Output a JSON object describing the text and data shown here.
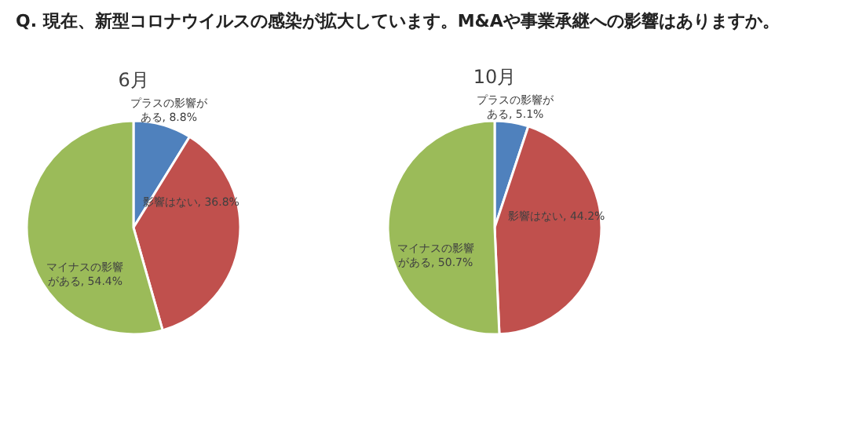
{
  "chart_data": [
    {
      "type": "pie",
      "title": "6月",
      "annotations": [
        "Q.  現在、新型コロナウイルスの感染が拡大しています。M&Aや事業承継への影響はありますか。"
      ],
      "categories": [
        "プラスの影響がある",
        "影響はない",
        "マイナスの影響がある"
      ],
      "values": [
        8.8,
        36.8,
        54.4
      ],
      "colors": [
        "#4f81bd",
        "#c0504d",
        "#9bbb59"
      ],
      "value_labels": [
        "8.8%",
        "36.8%",
        "54.4%"
      ]
    },
    {
      "type": "pie",
      "title": "10月",
      "categories": [
        "プラスの影響がある",
        "影響はない",
        "マイナスの影響がある"
      ],
      "values": [
        5.1,
        44.2,
        50.7
      ],
      "colors": [
        "#4f81bd",
        "#c0504d",
        "#9bbb59"
      ],
      "value_labels": [
        "5.1%",
        "44.2%",
        "50.7%"
      ]
    }
  ]
}
